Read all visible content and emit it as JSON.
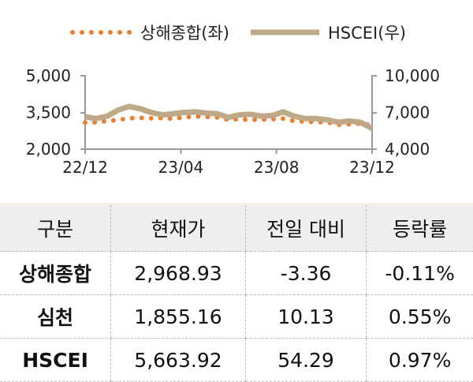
{
  "chart_data": {
    "type": "line",
    "legend": "top",
    "grid": false,
    "x_ticks": [
      "22/12",
      "23/04",
      "23/08",
      "23/12"
    ],
    "x_range": [
      "2022-12-01",
      "2023-12-01"
    ],
    "y_left": {
      "range": [
        2000,
        5000
      ],
      "ticks": [
        "5,000",
        "3,500",
        "2,000"
      ]
    },
    "y_right": {
      "range": [
        4000,
        10000
      ],
      "ticks": [
        "10,000",
        "7,000",
        "4,000"
      ]
    },
    "dates": [
      "2022-12-01",
      "2022-12-15",
      "2022-12-29",
      "2023-01-12",
      "2023-01-26",
      "2023-02-09",
      "2023-02-23",
      "2023-03-09",
      "2023-03-23",
      "2023-04-06",
      "2023-04-20",
      "2023-05-04",
      "2023-05-18",
      "2023-06-01",
      "2023-06-15",
      "2023-06-29",
      "2023-07-13",
      "2023-07-27",
      "2023-08-10",
      "2023-08-24",
      "2023-09-07",
      "2023-09-21",
      "2023-10-05",
      "2023-10-19",
      "2023-11-02",
      "2023-11-16",
      "2023-12-01"
    ],
    "series": [
      {
        "name": "상해종합(좌)",
        "axis": "left",
        "style": "dotted",
        "color": "#ee7d2d",
        "values": [
          3090,
          3100,
          3150,
          3200,
          3260,
          3280,
          3260,
          3270,
          3250,
          3300,
          3350,
          3320,
          3300,
          3200,
          3230,
          3200,
          3210,
          3230,
          3250,
          3150,
          3130,
          3110,
          3100,
          3000,
          3020,
          3050,
          2970
        ]
      },
      {
        "name": "HSCEI(우)",
        "axis": "right",
        "style": "thick",
        "color": "#bfa888",
        "values": [
          6650,
          6500,
          6700,
          7200,
          7500,
          7300,
          7000,
          6800,
          6900,
          7000,
          7050,
          6950,
          6900,
          6600,
          6800,
          6850,
          6700,
          6750,
          7050,
          6700,
          6500,
          6500,
          6400,
          6200,
          6300,
          6200,
          5700
        ]
      }
    ]
  },
  "table": {
    "headers": [
      "구분",
      "현재가",
      "전일 대비",
      "등락률"
    ],
    "rows": [
      [
        "상해종합",
        "2,968.93",
        "-3.36",
        "-0.11%"
      ],
      [
        "심천",
        "1,855.16",
        "10.13",
        "0.55%"
      ],
      [
        "HSCEI",
        "5,663.92",
        "54.29",
        "0.97%"
      ]
    ]
  }
}
